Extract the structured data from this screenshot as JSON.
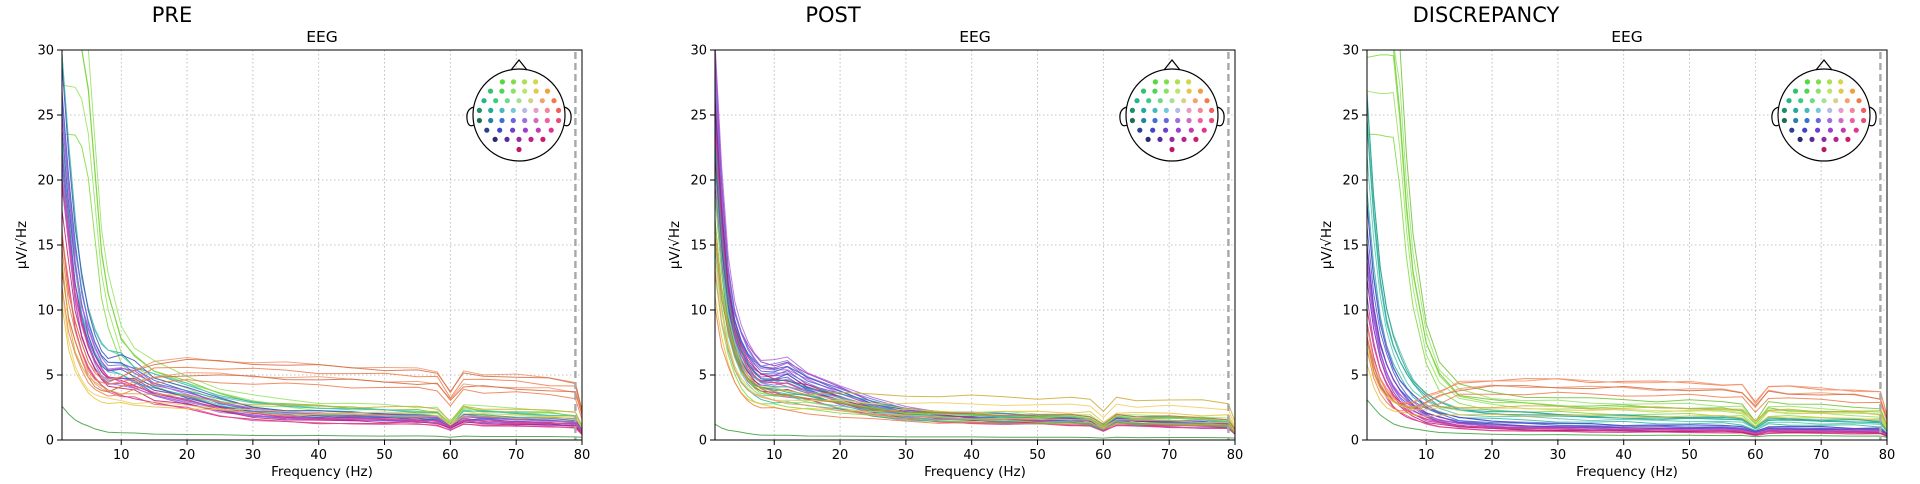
{
  "figure": {
    "panel_titles": [
      "PRE",
      "POST",
      "DISCREPANCY"
    ]
  },
  "chart_data": [
    {
      "type": "line",
      "title": "PRE",
      "subtitle": "EEG",
      "xlabel": "Frequency (Hz)",
      "ylabel": "µV/√Hz",
      "xlim": [
        1,
        80
      ],
      "ylim": [
        0,
        30
      ],
      "xticks": [
        10,
        20,
        30,
        40,
        50,
        60,
        70,
        80
      ],
      "yticks": [
        0,
        5,
        10,
        15,
        20,
        25,
        30
      ],
      "grid": true,
      "legend": "sensor-position head inset, top-right",
      "vertical_marker_hz": 79,
      "x": [
        1,
        2,
        3,
        4,
        5,
        6,
        7,
        8,
        10,
        12,
        15,
        20,
        25,
        30,
        35,
        40,
        45,
        50,
        55,
        58,
        60,
        62,
        65,
        70,
        75,
        79,
        80
      ],
      "series_groups": [
        {
          "color": "#7ddc3c",
          "count": 5,
          "values": [
            30,
            30,
            30,
            29,
            26,
            20,
            14,
            11,
            7.5,
            6.2,
            5.2,
            4.3,
            3.4,
            2.9,
            2.7,
            2.5,
            2.4,
            2.3,
            2.2,
            2.1,
            1.2,
            2.4,
            2.2,
            2.1,
            2.0,
            1.8,
            0.9
          ]
        },
        {
          "color": "#2bb5a0",
          "count": 5,
          "values": [
            26,
            20,
            15,
            11,
            9,
            7.5,
            6.5,
            6.0,
            5.8,
            5.0,
            4.4,
            3.8,
            3.0,
            2.5,
            2.3,
            2.2,
            2.1,
            2.0,
            1.9,
            1.8,
            1.0,
            2.0,
            1.9,
            1.8,
            1.7,
            1.6,
            0.8
          ]
        },
        {
          "color": "#4a55d6",
          "count": 6,
          "values": [
            25,
            19,
            14,
            11,
            8.5,
            7.0,
            6.0,
            5.5,
            5.6,
            5.2,
            4.2,
            3.5,
            2.7,
            2.2,
            2.0,
            1.9,
            1.8,
            1.8,
            1.7,
            1.6,
            1.0,
            1.7,
            1.6,
            1.5,
            1.4,
            1.3,
            0.7
          ]
        },
        {
          "color": "#9b3fd1",
          "count": 5,
          "values": [
            22,
            17,
            12,
            9,
            7.5,
            6.3,
            5.4,
            4.8,
            4.8,
            4.6,
            3.8,
            3.2,
            2.5,
            2.1,
            1.9,
            1.8,
            1.7,
            1.7,
            1.6,
            1.5,
            1.0,
            1.6,
            1.5,
            1.4,
            1.3,
            1.2,
            0.6
          ]
        },
        {
          "color": "#d61f7a",
          "count": 5,
          "values": [
            18,
            14,
            10,
            8,
            6.5,
            5.5,
            4.8,
            4.3,
            4.0,
            3.8,
            3.2,
            2.8,
            2.2,
            1.8,
            1.6,
            1.5,
            1.5,
            1.4,
            1.4,
            1.3,
            0.9,
            1.4,
            1.3,
            1.2,
            1.2,
            1.1,
            0.5
          ]
        },
        {
          "color": "#f07a4a",
          "count": 6,
          "values": [
            14,
            10,
            8,
            6.5,
            5.2,
            4.5,
            4.2,
            4.0,
            4.3,
            4.6,
            5.2,
            5.4,
            5.3,
            5.2,
            5.1,
            5.0,
            4.9,
            4.8,
            4.7,
            4.6,
            3.2,
            4.5,
            4.4,
            4.3,
            4.1,
            3.9,
            2.0
          ]
        },
        {
          "color": "#e8c23c",
          "count": 3,
          "values": [
            12,
            8,
            6,
            5,
            4.2,
            3.8,
            3.5,
            3.3,
            3.2,
            3.1,
            3.0,
            2.9,
            2.6,
            2.4,
            2.3,
            2.3,
            2.2,
            2.2,
            2.2,
            2.1,
            1.3,
            2.2,
            2.1,
            2.0,
            2.0,
            1.9,
            1.0
          ]
        },
        {
          "color": "#3aa03a",
          "count": 1,
          "values": [
            2.6,
            2.0,
            1.5,
            1.2,
            1.0,
            0.8,
            0.7,
            0.6,
            0.55,
            0.5,
            0.45,
            0.4,
            0.38,
            0.35,
            0.33,
            0.32,
            0.31,
            0.3,
            0.3,
            0.29,
            0.2,
            0.28,
            0.27,
            0.26,
            0.25,
            0.24,
            0.2
          ]
        }
      ]
    },
    {
      "type": "line",
      "title": "POST",
      "subtitle": "EEG",
      "xlabel": "Frequency (Hz)",
      "ylabel": "µV/√Hz",
      "xlim": [
        1,
        80
      ],
      "ylim": [
        0,
        30
      ],
      "xticks": [
        10,
        20,
        30,
        40,
        50,
        60,
        70,
        80
      ],
      "yticks": [
        0,
        5,
        10,
        15,
        20,
        25,
        30
      ],
      "grid": true,
      "legend": "sensor-position head inset, top-right",
      "vertical_marker_hz": 79,
      "x": [
        1,
        2,
        3,
        4,
        5,
        6,
        7,
        8,
        10,
        12,
        15,
        20,
        25,
        30,
        35,
        40,
        45,
        50,
        55,
        58,
        60,
        62,
        65,
        70,
        75,
        79,
        80
      ],
      "series_groups": [
        {
          "color": "#9b3fd1",
          "count": 8,
          "values": [
            27,
            18,
            12,
            9,
            7.5,
            6.5,
            5.8,
            5.3,
            5.2,
            5.4,
            4.5,
            3.6,
            2.7,
            2.2,
            1.9,
            1.8,
            1.7,
            1.6,
            1.5,
            1.4,
            0.9,
            1.5,
            1.4,
            1.3,
            1.2,
            1.1,
            0.6
          ]
        },
        {
          "color": "#4a55d6",
          "count": 8,
          "values": [
            24,
            16,
            11,
            8.5,
            7.0,
            6.0,
            5.4,
            5.0,
            5.0,
            5.2,
            4.3,
            3.4,
            2.6,
            2.1,
            1.9,
            1.8,
            1.7,
            1.6,
            1.5,
            1.4,
            0.9,
            1.5,
            1.4,
            1.3,
            1.3,
            1.2,
            0.6
          ]
        },
        {
          "color": "#d61f7a",
          "count": 6,
          "values": [
            22,
            15,
            10,
            7.5,
            6.2,
            5.2,
            4.6,
            4.2,
            4.0,
            3.9,
            3.5,
            2.8,
            2.2,
            1.8,
            1.6,
            1.5,
            1.4,
            1.4,
            1.3,
            1.2,
            0.8,
            1.3,
            1.2,
            1.1,
            1.1,
            1.0,
            0.5
          ]
        },
        {
          "color": "#2bb5a0",
          "count": 6,
          "values": [
            19,
            13,
            9,
            7,
            5.6,
            4.8,
            4.3,
            4.0,
            3.8,
            3.7,
            3.4,
            2.9,
            2.4,
            2.0,
            1.8,
            1.7,
            1.7,
            1.6,
            1.6,
            1.5,
            1.0,
            1.6,
            1.5,
            1.5,
            1.4,
            1.3,
            0.7
          ]
        },
        {
          "color": "#7ddc3c",
          "count": 5,
          "values": [
            16,
            11,
            8,
            6.2,
            5.0,
            4.3,
            3.8,
            3.5,
            3.3,
            3.2,
            3.0,
            2.7,
            2.3,
            2.0,
            1.9,
            1.8,
            1.8,
            1.7,
            1.7,
            1.6,
            1.0,
            1.7,
            1.6,
            1.6,
            1.5,
            1.4,
            0.7
          ]
        },
        {
          "color": "#e8c23c",
          "count": 3,
          "values": [
            14,
            10,
            7.5,
            5.8,
            4.8,
            4.1,
            3.7,
            3.4,
            3.2,
            3.1,
            3.0,
            3.0,
            2.9,
            2.9,
            2.8,
            2.8,
            2.8,
            2.7,
            2.7,
            2.7,
            1.8,
            2.7,
            2.6,
            2.6,
            2.5,
            2.4,
            1.2
          ]
        },
        {
          "color": "#f07a4a",
          "count": 3,
          "values": [
            13,
            9,
            7,
            5.5,
            4.5,
            3.9,
            3.5,
            3.2,
            3.0,
            2.9,
            2.6,
            2.3,
            2.0,
            1.8,
            1.7,
            1.7,
            1.6,
            1.6,
            1.6,
            1.5,
            1.0,
            1.6,
            1.5,
            1.5,
            1.4,
            1.3,
            0.7
          ]
        },
        {
          "color": "#3aa03a",
          "count": 1,
          "values": [
            1.3,
            1.0,
            0.8,
            0.7,
            0.6,
            0.5,
            0.45,
            0.4,
            0.38,
            0.36,
            0.33,
            0.3,
            0.28,
            0.26,
            0.25,
            0.24,
            0.23,
            0.22,
            0.22,
            0.21,
            0.15,
            0.21,
            0.2,
            0.2,
            0.19,
            0.18,
            0.15
          ]
        }
      ]
    },
    {
      "type": "line",
      "title": "DISCREPANCY",
      "subtitle": "EEG",
      "xlabel": "Frequency (Hz)",
      "ylabel": "µV/√Hz",
      "xlim": [
        1,
        80
      ],
      "ylim": [
        0,
        30
      ],
      "xticks": [
        10,
        20,
        30,
        40,
        50,
        60,
        70,
        80
      ],
      "yticks": [
        0,
        5,
        10,
        15,
        20,
        25,
        30
      ],
      "grid": true,
      "legend": "sensor-position head inset, top-right",
      "vertical_marker_hz": 79,
      "x": [
        1,
        2,
        3,
        4,
        5,
        6,
        7,
        8,
        10,
        12,
        15,
        20,
        25,
        30,
        35,
        40,
        45,
        50,
        55,
        58,
        60,
        62,
        65,
        70,
        75,
        79,
        80
      ],
      "series_groups": [
        {
          "color": "#7ddc3c",
          "count": 6,
          "values": [
            30,
            30,
            30,
            30,
            30,
            25,
            18,
            13,
            7.5,
            5.0,
            3.5,
            3.0,
            2.8,
            2.7,
            2.6,
            2.6,
            2.5,
            2.5,
            2.4,
            2.3,
            1.2,
            2.4,
            2.3,
            2.2,
            2.1,
            2.0,
            1.0
          ]
        },
        {
          "color": "#2bb5a0",
          "count": 6,
          "values": [
            24,
            17,
            12,
            9,
            7.2,
            6.0,
            5.0,
            4.2,
            3.2,
            2.6,
            2.2,
            2.0,
            1.9,
            1.8,
            1.7,
            1.7,
            1.6,
            1.6,
            1.6,
            1.5,
            0.9,
            1.5,
            1.5,
            1.4,
            1.4,
            1.3,
            0.7
          ]
        },
        {
          "color": "#4a55d6",
          "count": 6,
          "values": [
            16,
            11,
            8,
            6.3,
            5.0,
            4.1,
            3.5,
            3.0,
            2.3,
            1.9,
            1.5,
            1.3,
            1.2,
            1.1,
            1.1,
            1.0,
            1.0,
            1.0,
            1.0,
            0.9,
            0.6,
            0.9,
            0.9,
            0.9,
            0.8,
            0.8,
            0.4
          ]
        },
        {
          "color": "#9b3fd1",
          "count": 6,
          "values": [
            13,
            9,
            6.5,
            5.0,
            4.0,
            3.3,
            2.8,
            2.4,
            1.8,
            1.5,
            1.2,
            1.0,
            0.9,
            0.9,
            0.85,
            0.8,
            0.8,
            0.8,
            0.8,
            0.75,
            0.5,
            0.75,
            0.75,
            0.7,
            0.7,
            0.7,
            0.35
          ]
        },
        {
          "color": "#d61f7a",
          "count": 5,
          "values": [
            9,
            6.5,
            4.8,
            3.8,
            3.0,
            2.5,
            2.1,
            1.8,
            1.4,
            1.2,
            1.0,
            0.85,
            0.8,
            0.75,
            0.7,
            0.7,
            0.7,
            0.65,
            0.65,
            0.6,
            0.4,
            0.6,
            0.6,
            0.6,
            0.55,
            0.55,
            0.3
          ]
        },
        {
          "color": "#f07a4a",
          "count": 5,
          "values": [
            8,
            5.5,
            4.2,
            3.5,
            3.0,
            2.7,
            2.6,
            2.6,
            3.0,
            3.4,
            4.0,
            4.2,
            4.2,
            4.2,
            4.1,
            4.1,
            4.0,
            4.0,
            3.9,
            3.8,
            2.6,
            3.8,
            3.7,
            3.6,
            3.5,
            3.3,
            1.7
          ]
        },
        {
          "color": "#e8c23c",
          "count": 3,
          "values": [
            7,
            5,
            3.8,
            3.1,
            2.7,
            2.5,
            2.4,
            2.3,
            2.3,
            2.3,
            2.3,
            2.3,
            2.3,
            2.3,
            2.2,
            2.2,
            2.2,
            2.2,
            2.2,
            2.1,
            1.3,
            2.1,
            2.1,
            2.0,
            2.0,
            1.9,
            1.0
          ]
        },
        {
          "color": "#3aa03a",
          "count": 1,
          "values": [
            3.0,
            2.4,
            1.9,
            1.6,
            1.3,
            1.1,
            0.95,
            0.85,
            0.7,
            0.6,
            0.5,
            0.45,
            0.42,
            0.4,
            0.38,
            0.37,
            0.36,
            0.35,
            0.35,
            0.34,
            0.25,
            0.33,
            0.32,
            0.32,
            0.31,
            0.3,
            0.2
          ]
        }
      ]
    }
  ],
  "head_inset": {
    "sensor_colors": [
      "#4fdb3a",
      "#7fe046",
      "#a9e24a",
      "#d2d84a",
      "#2fc46a",
      "#53d35c",
      "#8de06a",
      "#bde46f",
      "#e2c84f",
      "#f0a03f",
      "#22b58a",
      "#3ccc7f",
      "#6fd98b",
      "#a5e09a",
      "#d7d08a",
      "#f3a26e",
      "#f07a4a",
      "#1c8f6b",
      "#26a8a1",
      "#45b9c0",
      "#79c6dc",
      "#b7b9e6",
      "#e69bc8",
      "#f4849a",
      "#f35d5d",
      "#1f6e4f",
      "#2a7fa8",
      "#3d6fd6",
      "#6a66e2",
      "#a06ee0",
      "#d06ac8",
      "#ee5ea1",
      "#e44f7a",
      "#2b3f8f",
      "#3f45c6",
      "#6a3fd1",
      "#9b3fd1",
      "#c23ab8",
      "#e1338f",
      "#2b2b6f",
      "#5a2c9a",
      "#8f2aa8",
      "#b8228f",
      "#cf1c6d",
      "#c0166a"
    ]
  }
}
